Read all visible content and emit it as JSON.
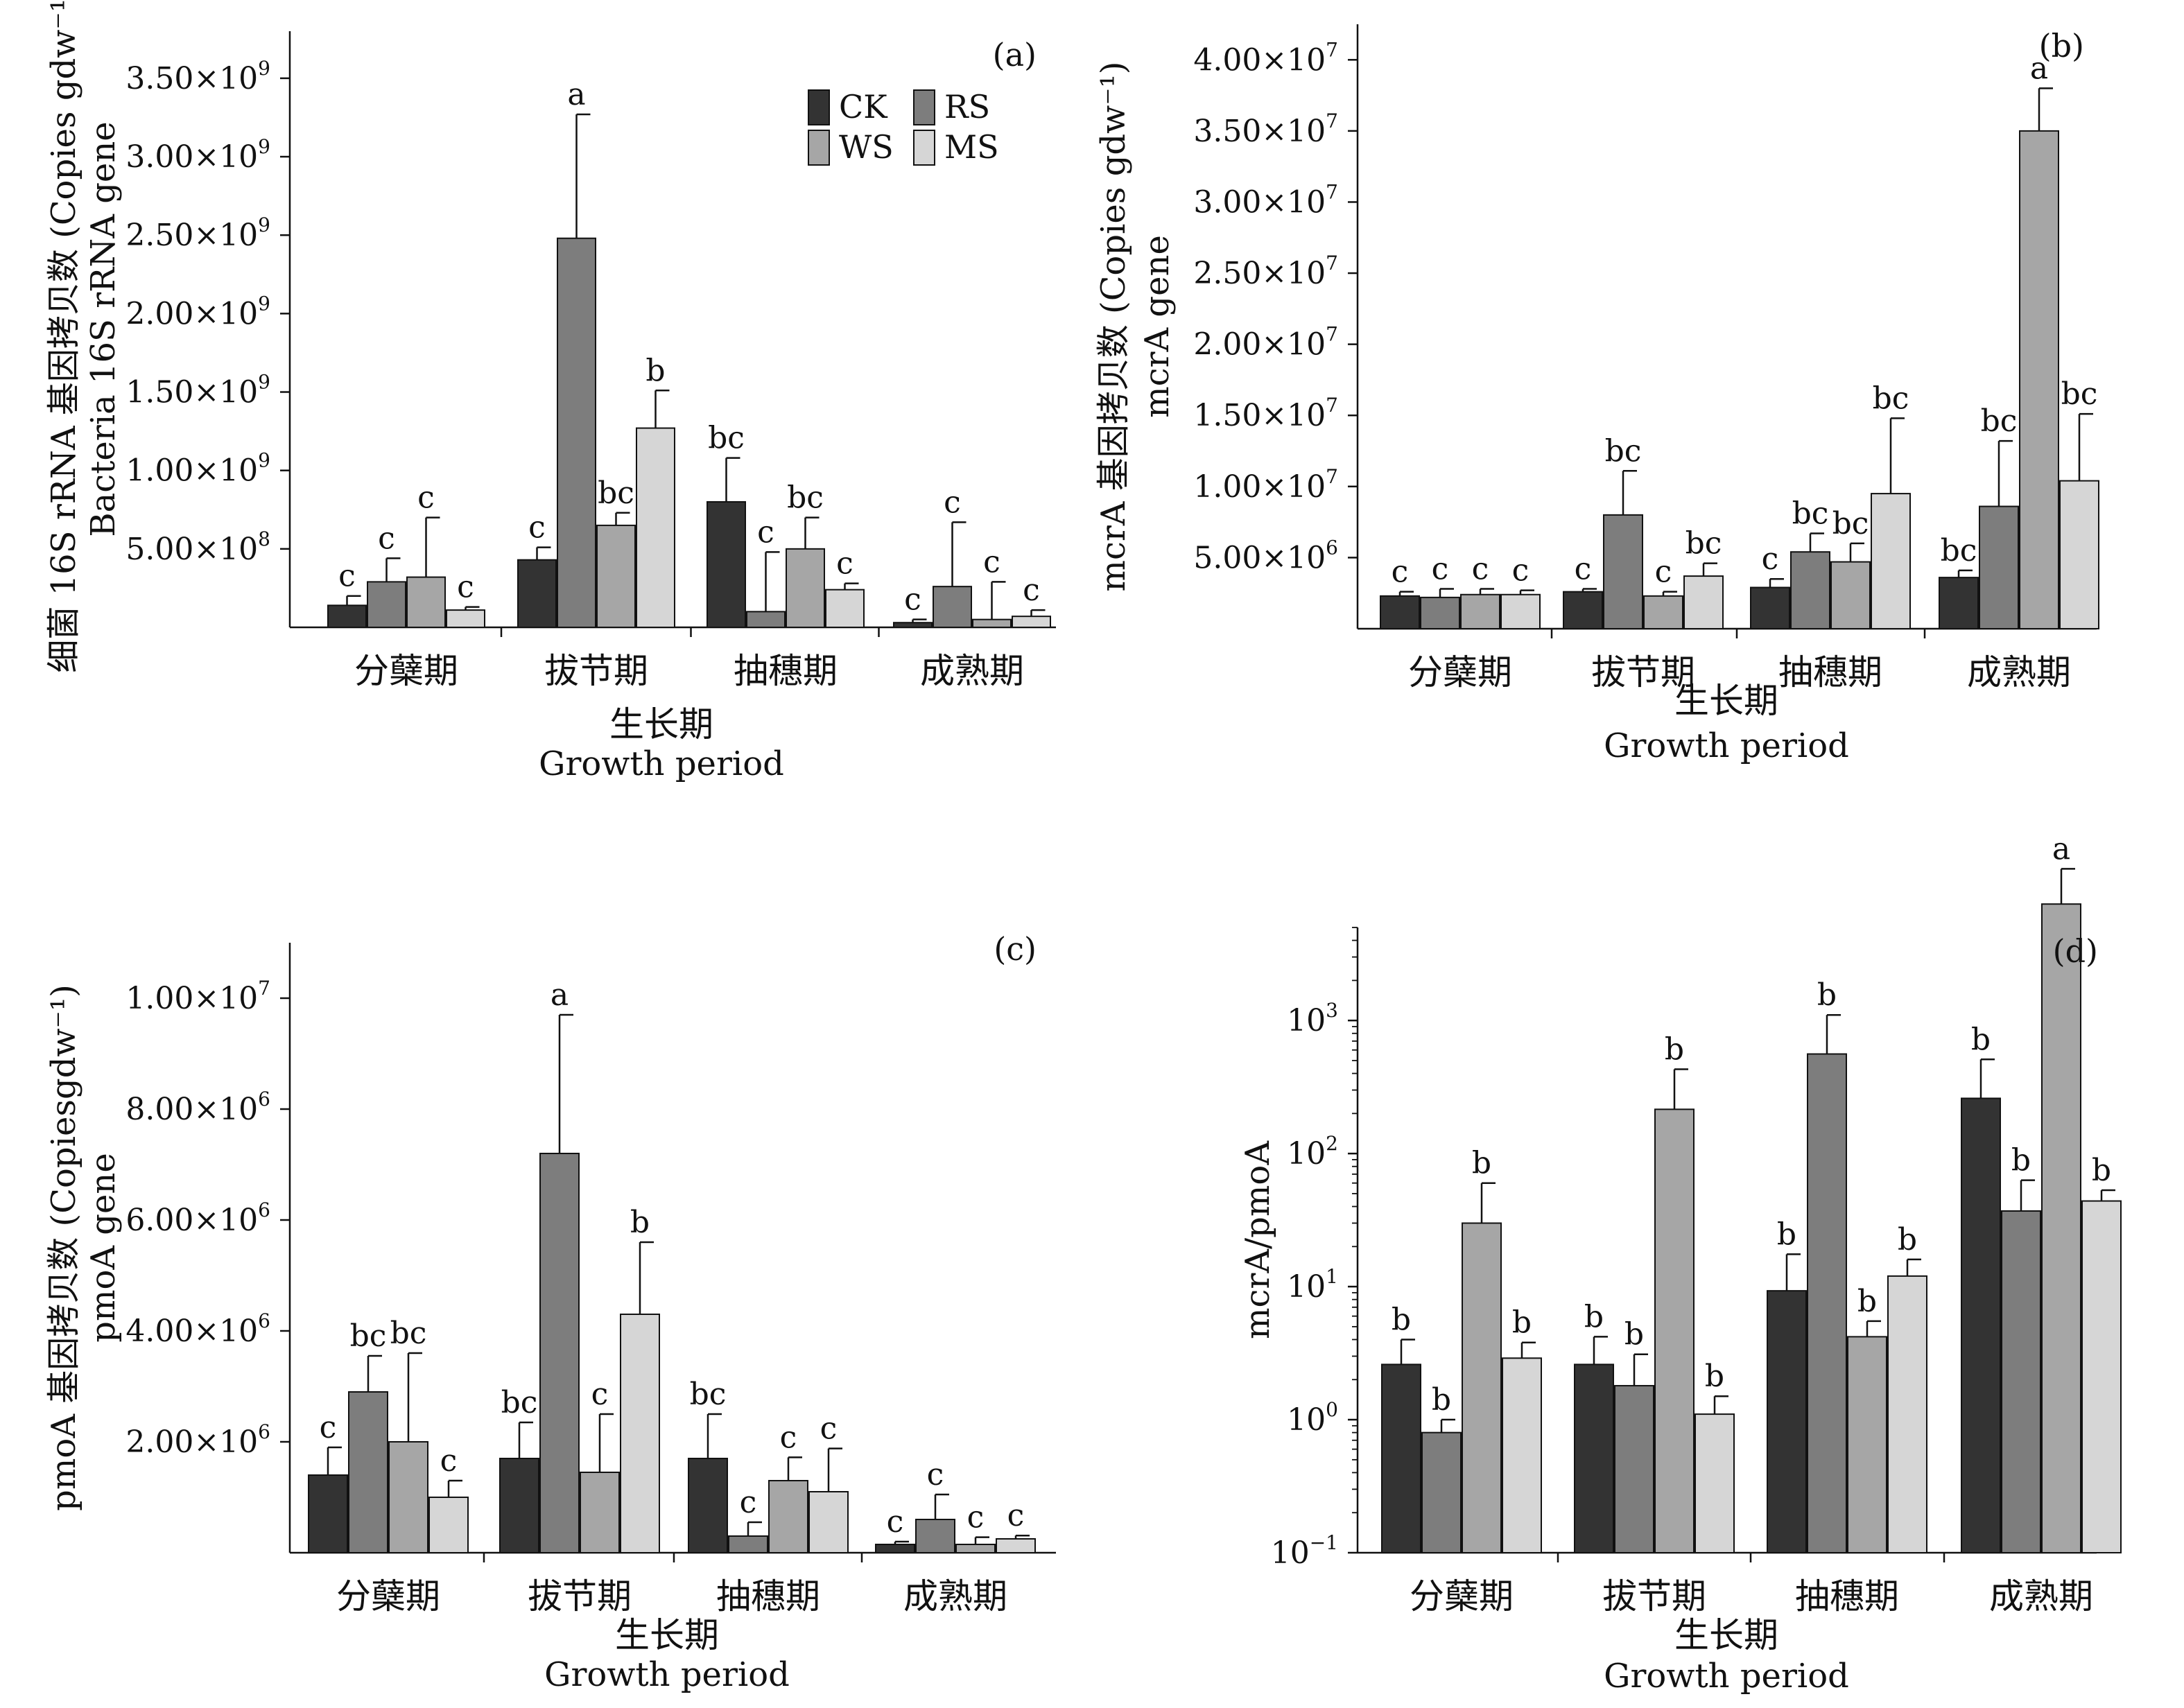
{
  "legend": {
    "entries": [
      "CK",
      "RS",
      "WS",
      "MS"
    ]
  },
  "colors": {
    "CK": "#333333",
    "RS": "#7d7d7d",
    "WS": "#a6a6a6",
    "MS": "#d6d6d6"
  },
  "chart_data": [
    {
      "panel": "(a)",
      "type": "bar",
      "scale": "linear",
      "categories": [
        "分蘖期",
        "拔节期",
        "抽穗期",
        "成熟期"
      ],
      "xlabel_cn": "生长期",
      "xlabel_en": "Growth period",
      "ylabel_cn": "细菌 16S rRNA 基因拷贝数 (Copies gdw⁻¹)",
      "ylabel_en": "Bacteria 16S rRNA gene",
      "ylim": [
        0,
        3800000000
      ],
      "yticks": [
        {
          "v": 500000000,
          "mant": "5.00×10",
          "exp": "8"
        },
        {
          "v": 1000000000,
          "mant": "1.00×10",
          "exp": "9"
        },
        {
          "v": 1500000000,
          "mant": "1.50×10",
          "exp": "9"
        },
        {
          "v": 2000000000,
          "mant": "2.00×10",
          "exp": "9"
        },
        {
          "v": 2500000000,
          "mant": "2.50×10",
          "exp": "9"
        },
        {
          "v": 3000000000,
          "mant": "3.00×10",
          "exp": "9"
        },
        {
          "v": 3500000000,
          "mant": "3.50×10",
          "exp": "9"
        }
      ],
      "series": [
        {
          "name": "CK",
          "values": [
            140000000,
            430000000,
            800000000,
            30000000
          ],
          "errors": [
            60000000,
            80000000,
            280000000,
            20000000
          ],
          "letters": [
            "c",
            "c",
            "bc",
            "c"
          ]
        },
        {
          "name": "RS",
          "values": [
            290000000,
            2480000000,
            100000000,
            260000000
          ],
          "errors": [
            150000000,
            790000000,
            380000000,
            410000000
          ],
          "letters": [
            "c",
            "a",
            "c",
            "c"
          ]
        },
        {
          "name": "WS",
          "values": [
            320000000,
            650000000,
            500000000,
            50000000
          ],
          "errors": [
            380000000,
            80000000,
            200000000,
            240000000
          ],
          "letters": [
            "c",
            "bc",
            "bc",
            "c"
          ]
        },
        {
          "name": "MS",
          "values": [
            110000000,
            1270000000,
            240000000,
            70000000
          ],
          "errors": [
            20000000,
            240000000,
            40000000,
            40000000
          ],
          "letters": [
            "c",
            "b",
            "c",
            "c"
          ]
        }
      ]
    },
    {
      "panel": "(b)",
      "type": "bar",
      "scale": "linear",
      "categories": [
        "分蘖期",
        "拔节期",
        "抽穗期",
        "成熟期"
      ],
      "xlabel_cn": "生长期",
      "xlabel_en": "Growth period",
      "ylabel_cn": "mcrA 基因拷贝数 (Copies gdw⁻¹)",
      "ylabel_en": "mcrA gene",
      "ylim": [
        0,
        42500000
      ],
      "yticks": [
        {
          "v": 5000000,
          "mant": "5.00×10",
          "exp": "6"
        },
        {
          "v": 10000000,
          "mant": "1.00×10",
          "exp": "7"
        },
        {
          "v": 15000000,
          "mant": "1.50×10",
          "exp": "7"
        },
        {
          "v": 20000000,
          "mant": "2.00×10",
          "exp": "7"
        },
        {
          "v": 25000000,
          "mant": "2.50×10",
          "exp": "7"
        },
        {
          "v": 30000000,
          "mant": "3.00×10",
          "exp": "7"
        },
        {
          "v": 35000000,
          "mant": "3.50×10",
          "exp": "7"
        },
        {
          "v": 40000000,
          "mant": "4.00×10",
          "exp": "7"
        }
      ],
      "series": [
        {
          "name": "CK",
          "values": [
            2300000,
            2600000,
            2900000,
            3600000
          ],
          "errors": [
            300000,
            200000,
            600000,
            500000
          ],
          "letters": [
            "c",
            "c",
            "c",
            "bc"
          ]
        },
        {
          "name": "RS",
          "values": [
            2200000,
            8000000,
            5400000,
            8600000
          ],
          "errors": [
            600000,
            3100000,
            1300000,
            4600000
          ],
          "letters": [
            "c",
            "bc",
            "bc",
            "bc"
          ]
        },
        {
          "name": "WS",
          "values": [
            2400000,
            2300000,
            4700000,
            35000000
          ],
          "errors": [
            400000,
            300000,
            1300000,
            3000000
          ],
          "letters": [
            "c",
            "c",
            "bc",
            "a"
          ]
        },
        {
          "name": "MS",
          "values": [
            2400000,
            3700000,
            9500000,
            10400000
          ],
          "errors": [
            300000,
            900000,
            5300000,
            4700000
          ],
          "letters": [
            "c",
            "bc",
            "bc",
            "bc"
          ]
        }
      ]
    },
    {
      "panel": "(c)",
      "type": "bar",
      "scale": "linear",
      "categories": [
        "分蘖期",
        "拔节期",
        "抽穗期",
        "成熟期"
      ],
      "xlabel_cn": "生长期",
      "xlabel_en": "Growth period",
      "ylabel_cn": "pmoA 基因拷贝数 (Copiesgdw⁻¹)",
      "ylabel_en": "pmoA gene",
      "ylim": [
        0,
        11000000
      ],
      "yticks": [
        {
          "v": 2000000,
          "mant": "2.00×10",
          "exp": "6"
        },
        {
          "v": 4000000,
          "mant": "4.00×10",
          "exp": "6"
        },
        {
          "v": 6000000,
          "mant": "6.00×10",
          "exp": "6"
        },
        {
          "v": 8000000,
          "mant": "8.00×10",
          "exp": "6"
        },
        {
          "v": 10000000,
          "mant": "1.00×10",
          "exp": "7"
        }
      ],
      "series": [
        {
          "name": "CK",
          "values": [
            1400000,
            1700000,
            1700000,
            150000
          ],
          "errors": [
            500000,
            650000,
            800000,
            50000
          ],
          "letters": [
            "c",
            "bc",
            "bc",
            "c"
          ]
        },
        {
          "name": "RS",
          "values": [
            2900000,
            7200000,
            300000,
            600000
          ],
          "errors": [
            650000,
            2500000,
            250000,
            450000
          ],
          "letters": [
            "bc",
            "a",
            "c",
            "c"
          ]
        },
        {
          "name": "WS",
          "values": [
            2000000,
            1450000,
            1300000,
            150000
          ],
          "errors": [
            1600000,
            1050000,
            420000,
            130000
          ],
          "letters": [
            "bc",
            "c",
            "c",
            "c"
          ]
        },
        {
          "name": "MS",
          "values": [
            1000000,
            4300000,
            1100000,
            250000
          ],
          "errors": [
            300000,
            1300000,
            780000,
            60000
          ],
          "letters": [
            "c",
            "b",
            "c",
            "c"
          ]
        }
      ]
    },
    {
      "panel": "(d)",
      "type": "bar",
      "scale": "log",
      "categories": [
        "分蘖期",
        "拔节期",
        "抽穗期",
        "成熟期"
      ],
      "xlabel_cn": "生长期",
      "xlabel_en": "Growth period",
      "ylabel_cn": "mcrA/pmoA",
      "ylabel_en": "",
      "ylim": [
        0.1,
        5000
      ],
      "yticks": [
        {
          "v": 0.1,
          "mant": "10",
          "exp": "−1"
        },
        {
          "v": 1,
          "mant": "10",
          "exp": "0"
        },
        {
          "v": 10,
          "mant": "10",
          "exp": "1"
        },
        {
          "v": 100,
          "mant": "10",
          "exp": "2"
        },
        {
          "v": 1000,
          "mant": "10",
          "exp": "3"
        }
      ],
      "series": [
        {
          "name": "CK",
          "values": [
            2.6,
            2.6,
            9.3,
            260
          ],
          "errors": [
            1.4,
            1.6,
            8.2,
            250
          ],
          "letters": [
            "b",
            "b",
            "b",
            "b"
          ]
        },
        {
          "name": "RS",
          "values": [
            0.8,
            1.8,
            560,
            37
          ],
          "errors": [
            0.2,
            1.3,
            540,
            26
          ],
          "letters": [
            "b",
            "b",
            "b",
            "b"
          ]
        },
        {
          "name": "WS",
          "values": [
            30,
            215,
            4.2,
            7500
          ],
          "errors": [
            30,
            215,
            1.3,
            6300
          ],
          "letters": [
            "b",
            "b",
            "b",
            "a"
          ]
        },
        {
          "name": "MS",
          "values": [
            2.9,
            1.1,
            12,
            44
          ],
          "errors": [
            0.9,
            0.4,
            4,
            9
          ],
          "letters": [
            "b",
            "b",
            "b",
            "b"
          ]
        }
      ]
    }
  ]
}
